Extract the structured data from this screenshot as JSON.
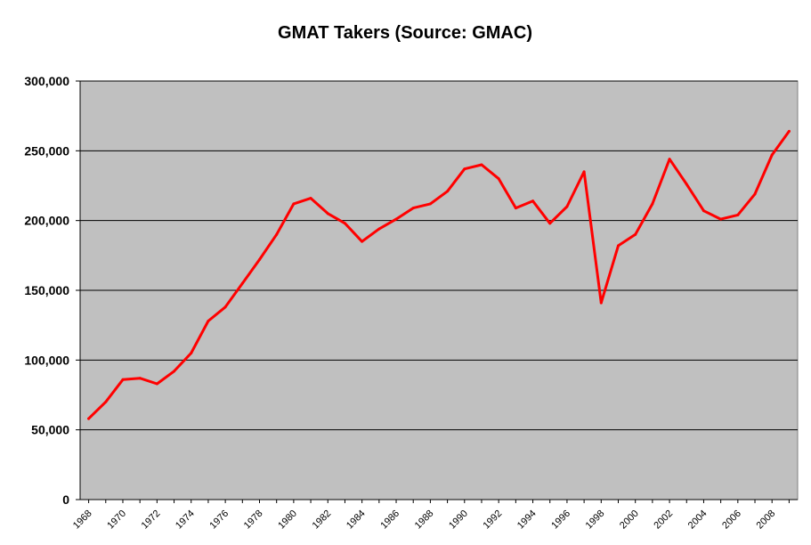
{
  "chart_data": {
    "type": "line",
    "title": "GMAT Takers (Source: GMAC)",
    "xlabel": "",
    "ylabel": "",
    "ylim": [
      0,
      300000
    ],
    "y_ticks": [
      0,
      50000,
      100000,
      150000,
      200000,
      250000,
      300000
    ],
    "y_tick_labels": [
      "0",
      "50,000",
      "100,000",
      "150,000",
      "200,000",
      "250,000",
      "300,000"
    ],
    "x_tick_labels": [
      "1968",
      "1970",
      "1972",
      "1974",
      "1976",
      "1978",
      "1980",
      "1982",
      "1984",
      "1986",
      "1988",
      "1990",
      "1992",
      "1994",
      "1996",
      "1998",
      "2000",
      "2002",
      "2004",
      "2006",
      "2008"
    ],
    "grid": true,
    "plot_background": "#c0c0c0",
    "line_color": "#ff0000",
    "x": [
      1968,
      1969,
      1970,
      1971,
      1972,
      1973,
      1974,
      1975,
      1976,
      1977,
      1978,
      1979,
      1980,
      1981,
      1982,
      1983,
      1984,
      1985,
      1986,
      1987,
      1988,
      1989,
      1990,
      1991,
      1992,
      1993,
      1994,
      1995,
      1996,
      1997,
      1998,
      1999,
      2000,
      2001,
      2002,
      2003,
      2004,
      2005,
      2006,
      2007,
      2008,
      2009
    ],
    "series": [
      {
        "values": [
          58000,
          70000,
          86000,
          87000,
          83000,
          92000,
          105000,
          128000,
          138000,
          155000,
          172000,
          190000,
          212000,
          216000,
          205000,
          198000,
          185000,
          194000,
          201000,
          209000,
          212000,
          221000,
          237000,
          240000,
          230000,
          209000,
          214000,
          198000,
          210000,
          235000,
          141000,
          182000,
          190000,
          212000,
          244000,
          226000,
          207000,
          201000,
          204000,
          219000,
          247000,
          264000
        ]
      }
    ]
  }
}
